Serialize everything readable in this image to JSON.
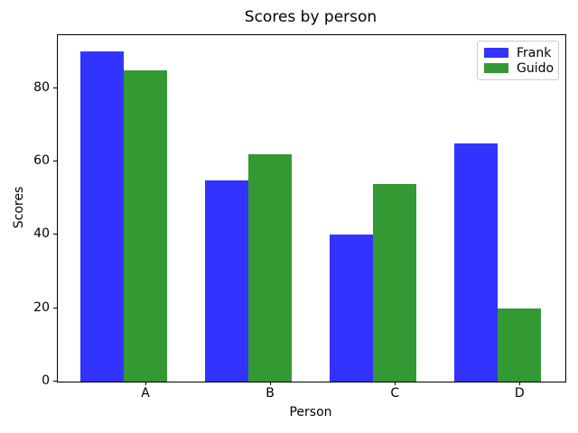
{
  "figure": {
    "background": "#ffffff",
    "text_color": "#000000",
    "spine_color": "#000000"
  },
  "chart_data": {
    "type": "bar",
    "title": "Scores by person",
    "xlabel": "Person",
    "ylabel": "Scores",
    "categories": [
      "A",
      "B",
      "C",
      "D"
    ],
    "series": [
      {
        "name": "Frank",
        "color": "#3333ff",
        "values": [
          90,
          55,
          40,
          65
        ]
      },
      {
        "name": "Guido",
        "color": "#339933",
        "values": [
          85,
          62,
          54,
          20
        ]
      }
    ],
    "yticks": [
      0,
      20,
      40,
      60,
      80
    ],
    "ylim": [
      0,
      94.5
    ],
    "xlim": [
      -0.36,
      3.71
    ],
    "bar_width": 0.35,
    "group_offsets": [
      0,
      0.35
    ],
    "tick_offset": 0.35,
    "grid": false,
    "legend_position": "upper right"
  }
}
